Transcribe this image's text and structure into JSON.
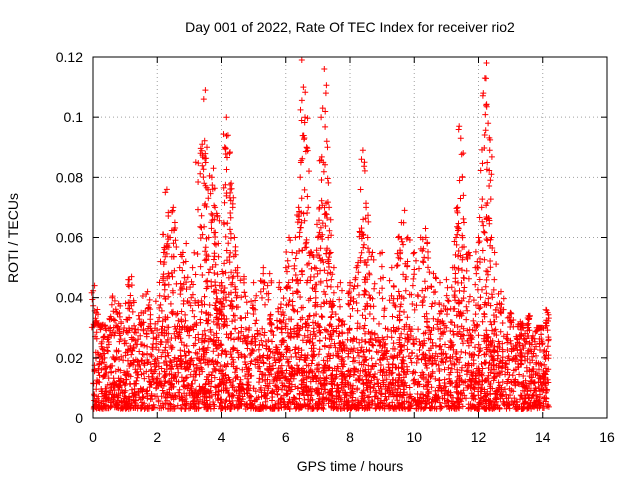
{
  "chart_data": {
    "type": "scatter",
    "title": "Day 001 of 2022, Rate Of TEC Index for receiver rio2",
    "xlabel": "GPS time / hours",
    "ylabel": "ROTI / TECUs",
    "xlim": [
      0,
      16
    ],
    "ylim": [
      0,
      0.12
    ],
    "xticks": [
      0,
      2,
      4,
      6,
      8,
      10,
      12,
      14,
      16
    ],
    "yticks": [
      0,
      0.02,
      0.04,
      0.06,
      0.08,
      0.1,
      0.12
    ],
    "xtick_labels": [
      "0",
      "2",
      "4",
      "6",
      "8",
      "10",
      "12",
      "14",
      "16"
    ],
    "ytick_labels": [
      "0",
      "0.02",
      "0.04",
      "0.06",
      "0.08",
      "0.1",
      "0.12"
    ],
    "grid": true,
    "marker": "+",
    "color": "#ff0000",
    "series": [
      {
        "name": "ROTI",
        "data_range_hours": [
          0,
          14.2
        ],
        "background_band": [
          0.003,
          0.03
        ],
        "points": [
          [
            0.05,
            0.044
          ],
          [
            0.1,
            0.035
          ],
          [
            0.3,
            0.031
          ],
          [
            0.6,
            0.04
          ],
          [
            0.8,
            0.038
          ],
          [
            1.1,
            0.046
          ],
          [
            1.2,
            0.047
          ],
          [
            1.5,
            0.035
          ],
          [
            1.7,
            0.042
          ],
          [
            2.1,
            0.052
          ],
          [
            2.2,
            0.055
          ],
          [
            2.25,
            0.075
          ],
          [
            2.3,
            0.076
          ],
          [
            2.4,
            0.06
          ],
          [
            2.5,
            0.07
          ],
          [
            2.55,
            0.065
          ],
          [
            2.7,
            0.05
          ],
          [
            2.8,
            0.055
          ],
          [
            2.9,
            0.058
          ],
          [
            3.1,
            0.05
          ],
          [
            3.2,
            0.085
          ],
          [
            3.35,
            0.088
          ],
          [
            3.4,
            0.091
          ],
          [
            3.45,
            0.106
          ],
          [
            3.5,
            0.109
          ],
          [
            3.55,
            0.09
          ],
          [
            3.6,
            0.06
          ],
          [
            3.7,
            0.08
          ],
          [
            3.75,
            0.083
          ],
          [
            3.8,
            0.07
          ],
          [
            3.85,
            0.068
          ],
          [
            3.9,
            0.058
          ],
          [
            4.0,
            0.045
          ],
          [
            4.05,
            0.048
          ],
          [
            4.1,
            0.09
          ],
          [
            4.15,
            0.1
          ],
          [
            4.2,
            0.094
          ],
          [
            4.25,
            0.088
          ],
          [
            4.3,
            0.078
          ],
          [
            4.35,
            0.07
          ],
          [
            4.4,
            0.06
          ],
          [
            4.5,
            0.05
          ],
          [
            4.7,
            0.047
          ],
          [
            5.0,
            0.045
          ],
          [
            5.3,
            0.05
          ],
          [
            5.5,
            0.048
          ],
          [
            5.8,
            0.045
          ],
          [
            6.0,
            0.05
          ],
          [
            6.1,
            0.06
          ],
          [
            6.2,
            0.055
          ],
          [
            6.3,
            0.06
          ],
          [
            6.4,
            0.07
          ],
          [
            6.45,
            0.08
          ],
          [
            6.5,
            0.119
          ],
          [
            6.55,
            0.11
          ],
          [
            6.6,
            0.1
          ],
          [
            6.65,
            0.09
          ],
          [
            6.7,
            0.07
          ],
          [
            6.8,
            0.055
          ],
          [
            6.9,
            0.05
          ],
          [
            7.0,
            0.06
          ],
          [
            7.05,
            0.07
          ],
          [
            7.1,
            0.1
          ],
          [
            7.15,
            0.103
          ],
          [
            7.2,
            0.116
          ],
          [
            7.25,
            0.108
          ],
          [
            7.3,
            0.09
          ],
          [
            7.35,
            0.07
          ],
          [
            7.4,
            0.055
          ],
          [
            7.5,
            0.05
          ],
          [
            7.7,
            0.045
          ],
          [
            8.0,
            0.045
          ],
          [
            8.2,
            0.05
          ],
          [
            8.3,
            0.062
          ],
          [
            8.4,
            0.089
          ],
          [
            8.45,
            0.085
          ],
          [
            8.5,
            0.07
          ],
          [
            8.55,
            0.06
          ],
          [
            8.7,
            0.055
          ],
          [
            9.0,
            0.055
          ],
          [
            9.3,
            0.05
          ],
          [
            9.5,
            0.06
          ],
          [
            9.6,
            0.065
          ],
          [
            9.7,
            0.069
          ],
          [
            9.8,
            0.06
          ],
          [
            10.0,
            0.055
          ],
          [
            10.2,
            0.06
          ],
          [
            10.35,
            0.063
          ],
          [
            10.4,
            0.058
          ],
          [
            10.6,
            0.048
          ],
          [
            10.8,
            0.045
          ],
          [
            11.0,
            0.046
          ],
          [
            11.2,
            0.05
          ],
          [
            11.3,
            0.06
          ],
          [
            11.35,
            0.07
          ],
          [
            11.4,
            0.097
          ],
          [
            11.45,
            0.093
          ],
          [
            11.5,
            0.08
          ],
          [
            11.55,
            0.065
          ],
          [
            11.7,
            0.055
          ],
          [
            11.9,
            0.05
          ],
          [
            12.0,
            0.06
          ],
          [
            12.1,
            0.07
          ],
          [
            12.15,
            0.108
          ],
          [
            12.2,
            0.113
          ],
          [
            12.25,
            0.118
          ],
          [
            12.3,
            0.098
          ],
          [
            12.35,
            0.089
          ],
          [
            12.4,
            0.081
          ],
          [
            12.5,
            0.055
          ],
          [
            12.7,
            0.042
          ],
          [
            13.0,
            0.035
          ],
          [
            13.3,
            0.032
          ],
          [
            13.6,
            0.034
          ],
          [
            13.9,
            0.03
          ],
          [
            14.1,
            0.036
          ]
        ]
      }
    ]
  }
}
